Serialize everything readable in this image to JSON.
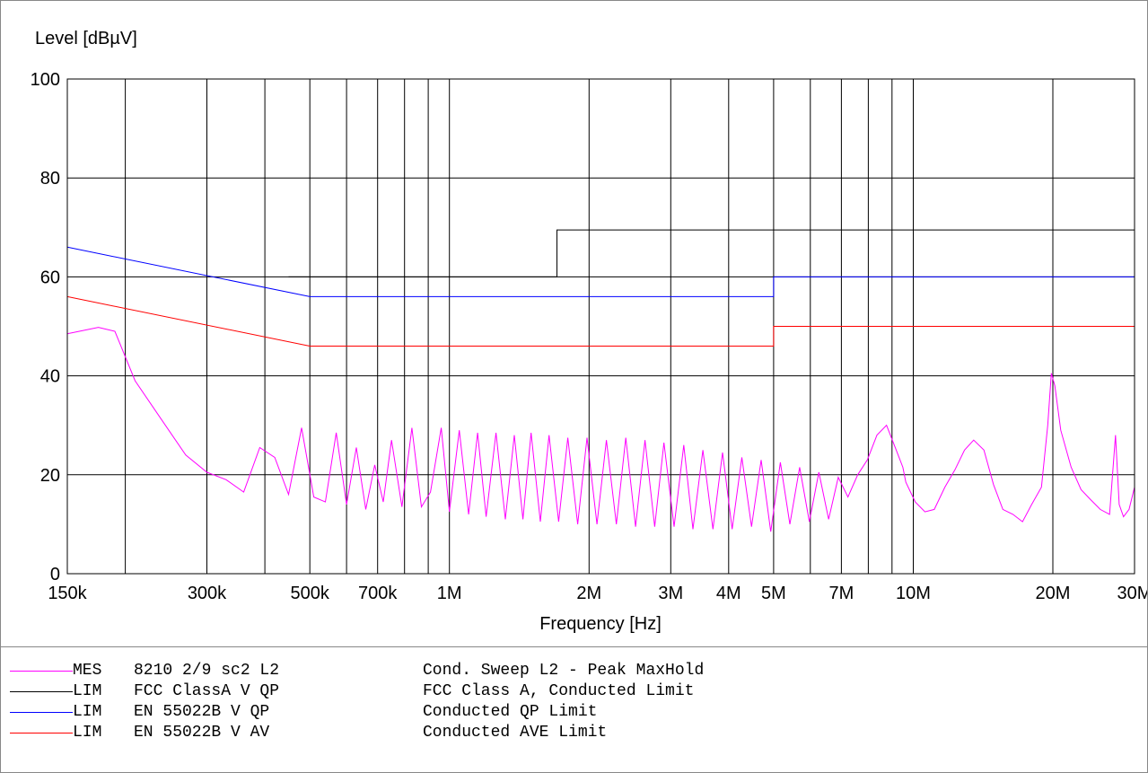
{
  "chart_data": {
    "type": "line",
    "ylabel": "Level [dBµV]",
    "xlabel": "Frequency [Hz]",
    "x_scale": "log",
    "xlim": [
      150000,
      30000000
    ],
    "ylim": [
      0,
      100
    ],
    "grid": true,
    "legend_position": "below",
    "x_ticks": [
      {
        "value": 150000,
        "label": "150k"
      },
      {
        "value": 300000,
        "label": "300k"
      },
      {
        "value": 500000,
        "label": "500k"
      },
      {
        "value": 700000,
        "label": "700k"
      },
      {
        "value": 1000000,
        "label": "1M"
      },
      {
        "value": 2000000,
        "label": "2M"
      },
      {
        "value": 3000000,
        "label": "3M"
      },
      {
        "value": 4000000,
        "label": "4M"
      },
      {
        "value": 5000000,
        "label": "5M"
      },
      {
        "value": 7000000,
        "label": "7M"
      },
      {
        "value": 10000000,
        "label": "10M"
      },
      {
        "value": 20000000,
        "label": "20M"
      },
      {
        "value": 30000000,
        "label": "30M"
      }
    ],
    "x_grid": [
      150000,
      200000,
      300000,
      400000,
      500000,
      600000,
      700000,
      800000,
      900000,
      1000000,
      2000000,
      3000000,
      4000000,
      5000000,
      6000000,
      7000000,
      8000000,
      9000000,
      10000000,
      20000000,
      30000000
    ],
    "y_ticks": [
      0,
      20,
      40,
      60,
      80,
      100
    ],
    "series": [
      {
        "kind": "MES",
        "name": "8210 2/9 sc2 L2",
        "description": "Cond. Sweep L2 - Peak MaxHold",
        "color": "#ff00ff",
        "x": [
          150000,
          175000,
          190000,
          210000,
          240000,
          270000,
          300000,
          330000,
          360000,
          390000,
          420000,
          450000,
          480000,
          510000,
          540000,
          570000,
          600000,
          630000,
          660000,
          690000,
          720000,
          750000,
          790000,
          830000,
          870000,
          910000,
          960000,
          1000000,
          1050000,
          1100000,
          1150000,
          1200000,
          1260000,
          1320000,
          1380000,
          1440000,
          1500000,
          1570000,
          1640000,
          1720000,
          1800000,
          1890000,
          1980000,
          2080000,
          2180000,
          2290000,
          2400000,
          2520000,
          2640000,
          2770000,
          2900000,
          3050000,
          3200000,
          3350000,
          3520000,
          3700000,
          3880000,
          4070000,
          4270000,
          4480000,
          4700000,
          4930000,
          5170000,
          5420000,
          5690000,
          5970000,
          6260000,
          6570000,
          6890000,
          7230000,
          7590000,
          7960000,
          8350000,
          8760000,
          9190000,
          9500000,
          9640000,
          10100000,
          10600000,
          11100000,
          11700000,
          12300000,
          12900000,
          13500000,
          14200000,
          14900000,
          15600000,
          16400000,
          17200000,
          18000000,
          18900000,
          19500000,
          19850000,
          20200000,
          20800000,
          21900000,
          23000000,
          24100000,
          25300000,
          26500000,
          27300000,
          27800000,
          28400000,
          29200000,
          30000000
        ],
        "y": [
          48.5,
          49.8,
          49.0,
          39.0,
          31.0,
          24.0,
          20.5,
          19.0,
          16.5,
          25.5,
          23.5,
          16.0,
          29.5,
          15.5,
          14.5,
          28.5,
          14.0,
          25.5,
          13.0,
          22.0,
          14.5,
          27.0,
          13.5,
          29.5,
          13.5,
          16.5,
          29.5,
          12.5,
          29.0,
          12.0,
          28.5,
          11.5,
          28.5,
          11.0,
          28.0,
          11.0,
          28.5,
          10.5,
          28.0,
          10.5,
          27.5,
          10.0,
          27.5,
          10.0,
          27.0,
          10.0,
          27.5,
          9.5,
          27.0,
          9.5,
          26.5,
          9.5,
          26.0,
          9.0,
          25.0,
          9.0,
          24.5,
          9.0,
          23.5,
          9.5,
          23.0,
          8.5,
          22.5,
          10.0,
          21.5,
          10.5,
          20.5,
          11.0,
          19.5,
          15.5,
          20.0,
          23.0,
          28.0,
          30.0,
          25.0,
          21.5,
          18.5,
          14.5,
          12.5,
          13.0,
          17.5,
          21.0,
          25.0,
          27.0,
          25.0,
          18.0,
          13.0,
          12.0,
          10.5,
          14.0,
          17.5,
          30.0,
          40.5,
          38.0,
          29.0,
          21.5,
          17.0,
          15.0,
          13.0,
          12.0,
          28.0,
          14.0,
          11.5,
          13.0,
          17.5
        ]
      },
      {
        "kind": "LIM",
        "name": "FCC ClassA V QP",
        "description": "FCC Class A, Conducted Limit",
        "color": "#000000",
        "x": [
          450000,
          1705000,
          1705000,
          30000000
        ],
        "y": [
          60,
          60,
          69.5,
          69.5
        ]
      },
      {
        "kind": "LIM",
        "name": "EN 55022B V QP",
        "description": "Conducted QP Limit",
        "color": "#0000ff",
        "x": [
          150000,
          500000,
          5000000,
          5000000,
          30000000
        ],
        "y": [
          66,
          56,
          56,
          60,
          60
        ]
      },
      {
        "kind": "LIM",
        "name": "EN 55022B V AV",
        "description": "Conducted AVE Limit",
        "color": "#ff0000",
        "x": [
          150000,
          500000,
          5000000,
          5000000,
          30000000
        ],
        "y": [
          56,
          46,
          46,
          50,
          50
        ]
      }
    ]
  }
}
